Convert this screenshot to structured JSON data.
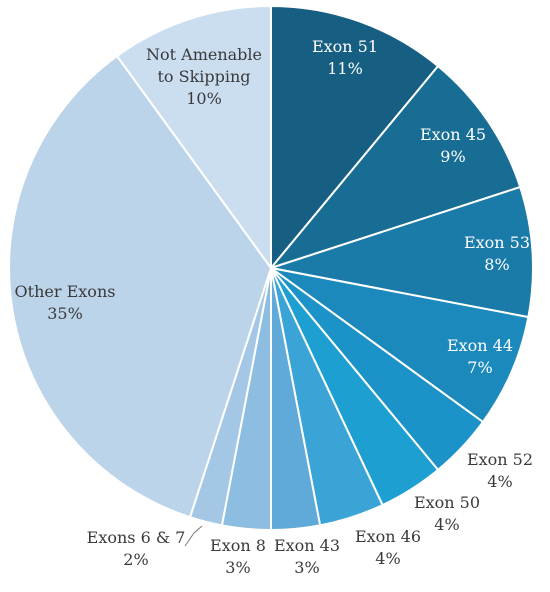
{
  "chart_data": {
    "type": "pie",
    "start_angle_deg": 0,
    "direction": "clockwise",
    "legend": "none",
    "slices": [
      {
        "label": "Exon 51",
        "percent_text": "11%",
        "value": 11,
        "color": "#175f82"
      },
      {
        "label": "Exon 45",
        "percent_text": "9%",
        "value": 9,
        "color": "#186d95"
      },
      {
        "label": "Exon 53",
        "percent_text": "8%",
        "value": 8,
        "color": "#1a7aa8"
      },
      {
        "label": "Exon 44",
        "percent_text": "7%",
        "value": 7,
        "color": "#1c89bd"
      },
      {
        "label": "Exon 52",
        "percent_text": "4%",
        "value": 4,
        "color": "#1c93c8"
      },
      {
        "label": "Exon 50",
        "percent_text": "4%",
        "value": 4,
        "color": "#1e9fd2"
      },
      {
        "label": "Exon 46",
        "percent_text": "4%",
        "value": 4,
        "color": "#3aa4d6"
      },
      {
        "label": "Exon 43",
        "percent_text": "3%",
        "value": 3,
        "color": "#5faad8"
      },
      {
        "label": "Exon 8",
        "percent_text": "3%",
        "value": 3,
        "color": "#8dbde0"
      },
      {
        "label": "Exons 6 & 7",
        "percent_text": "2%",
        "value": 2,
        "color": "#a3c7e5"
      },
      {
        "label": "Other Exons",
        "percent_text": "35%",
        "value": 35,
        "color": "#bcd4ea"
      },
      {
        "label": "Not Amenable\nto Skipping",
        "percent_text": "10%",
        "value": 10,
        "color": "#cbdef0"
      }
    ]
  }
}
